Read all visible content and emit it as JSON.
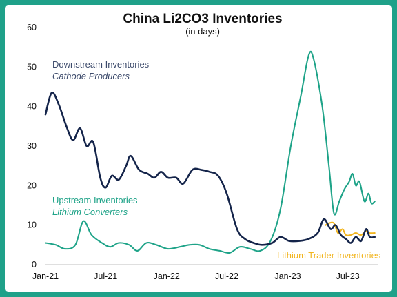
{
  "chart_data": {
    "type": "line",
    "title": "China Li2CO3 Inventories",
    "subtitle": "(in days)",
    "xlabel": "",
    "ylabel": "",
    "ylim": [
      0,
      60
    ],
    "yticks": [
      0,
      10,
      20,
      30,
      40,
      50,
      60
    ],
    "xlim": [
      "2021-01",
      "2023-10"
    ],
    "xticks": [
      {
        "x": "2021-01",
        "label": "Jan-21"
      },
      {
        "x": "2021-07",
        "label": "Jul-21"
      },
      {
        "x": "2022-01",
        "label": "Jan-22"
      },
      {
        "x": "2022-07",
        "label": "Jul-22"
      },
      {
        "x": "2023-01",
        "label": "Jan-23"
      },
      {
        "x": "2023-07",
        "label": "Jul-23"
      }
    ],
    "grid": false,
    "legend": "none",
    "series": [
      {
        "name": "Downstream Inventories",
        "label_line1": "Downstream Inventories",
        "label_line2": "Cathode Producers",
        "color": "#14244a",
        "points": [
          [
            "2021-01-01",
            38
          ],
          [
            "2021-01-20",
            43.5
          ],
          [
            "2021-02-10",
            40.5
          ],
          [
            "2021-03-05",
            35
          ],
          [
            "2021-03-25",
            31.5
          ],
          [
            "2021-04-15",
            34.5
          ],
          [
            "2021-05-05",
            30
          ],
          [
            "2021-05-25",
            31
          ],
          [
            "2021-06-15",
            22
          ],
          [
            "2021-07-01",
            19.5
          ],
          [
            "2021-07-20",
            22.5
          ],
          [
            "2021-08-10",
            21.5
          ],
          [
            "2021-09-01",
            25
          ],
          [
            "2021-09-15",
            27.5
          ],
          [
            "2021-10-10",
            24
          ],
          [
            "2021-11-05",
            23
          ],
          [
            "2021-11-25",
            22
          ],
          [
            "2021-12-15",
            23.5
          ],
          [
            "2022-01-05",
            22
          ],
          [
            "2022-01-30",
            22
          ],
          [
            "2022-02-20",
            20.5
          ],
          [
            "2022-03-20",
            24
          ],
          [
            "2022-04-15",
            24
          ],
          [
            "2022-05-10",
            23.5
          ],
          [
            "2022-06-05",
            22.5
          ],
          [
            "2022-07-01",
            18
          ],
          [
            "2022-08-01",
            9
          ],
          [
            "2022-08-25",
            6.5
          ],
          [
            "2022-09-20",
            5.5
          ],
          [
            "2022-10-15",
            5
          ],
          [
            "2022-11-15",
            5.5
          ],
          [
            "2022-12-10",
            7
          ],
          [
            "2023-01-05",
            6
          ],
          [
            "2023-02-05",
            6
          ],
          [
            "2023-03-05",
            6.5
          ],
          [
            "2023-04-01",
            8
          ],
          [
            "2023-04-20",
            11.5
          ],
          [
            "2023-05-10",
            9
          ],
          [
            "2023-05-25",
            10
          ],
          [
            "2023-06-10",
            7.5
          ],
          [
            "2023-06-25",
            6.5
          ],
          [
            "2023-07-10",
            5.5
          ],
          [
            "2023-07-25",
            7
          ],
          [
            "2023-08-10",
            6
          ],
          [
            "2023-08-25",
            9
          ],
          [
            "2023-09-05",
            7
          ],
          [
            "2023-09-20",
            7
          ]
        ]
      },
      {
        "name": "Upstream Inventories",
        "label_line1": "Upstream Inventories",
        "label_line2": "Lithium Converters",
        "color": "#1ea388",
        "points": [
          [
            "2021-01-01",
            5.5
          ],
          [
            "2021-02-01",
            5
          ],
          [
            "2021-03-01",
            4
          ],
          [
            "2021-04-01",
            5
          ],
          [
            "2021-04-25",
            11
          ],
          [
            "2021-05-20",
            7.5
          ],
          [
            "2021-06-20",
            5.5
          ],
          [
            "2021-07-15",
            4.5
          ],
          [
            "2021-08-10",
            5.5
          ],
          [
            "2021-09-10",
            5
          ],
          [
            "2021-10-05",
            3.5
          ],
          [
            "2021-11-01",
            5.5
          ],
          [
            "2021-12-01",
            5
          ],
          [
            "2022-01-05",
            4
          ],
          [
            "2022-02-10",
            4.5
          ],
          [
            "2022-03-10",
            5
          ],
          [
            "2022-04-10",
            5
          ],
          [
            "2022-05-10",
            4
          ],
          [
            "2022-06-10",
            3.5
          ],
          [
            "2022-07-10",
            3
          ],
          [
            "2022-08-10",
            4.5
          ],
          [
            "2022-09-10",
            4
          ],
          [
            "2022-10-10",
            3.5
          ],
          [
            "2022-11-10",
            6
          ],
          [
            "2022-12-10",
            14
          ],
          [
            "2023-01-10",
            30
          ],
          [
            "2023-02-10",
            43
          ],
          [
            "2023-03-05",
            53
          ],
          [
            "2023-03-20",
            52
          ],
          [
            "2023-04-15",
            40
          ],
          [
            "2023-05-05",
            25
          ],
          [
            "2023-05-20",
            13
          ],
          [
            "2023-06-05",
            16
          ],
          [
            "2023-06-20",
            19
          ],
          [
            "2023-07-05",
            21
          ],
          [
            "2023-07-15",
            23
          ],
          [
            "2023-07-25",
            20
          ],
          [
            "2023-08-05",
            21
          ],
          [
            "2023-08-20",
            16
          ],
          [
            "2023-09-01",
            18
          ],
          [
            "2023-09-10",
            15.5
          ],
          [
            "2023-09-20",
            16
          ]
        ]
      },
      {
        "name": "Lithium Trader Inventories",
        "label_line1": "Lithium Trader Inventories",
        "color": "#f2b51f",
        "points": [
          [
            "2023-04-25",
            10
          ],
          [
            "2023-05-05",
            10.5
          ],
          [
            "2023-05-20",
            10.5
          ],
          [
            "2023-06-01",
            8
          ],
          [
            "2023-06-15",
            9
          ],
          [
            "2023-06-25",
            7.5
          ],
          [
            "2023-07-10",
            7.5
          ],
          [
            "2023-07-25",
            8
          ],
          [
            "2023-08-10",
            7.5
          ],
          [
            "2023-08-25",
            8.5
          ],
          [
            "2023-09-05",
            8
          ],
          [
            "2023-09-20",
            8
          ]
        ]
      }
    ]
  }
}
